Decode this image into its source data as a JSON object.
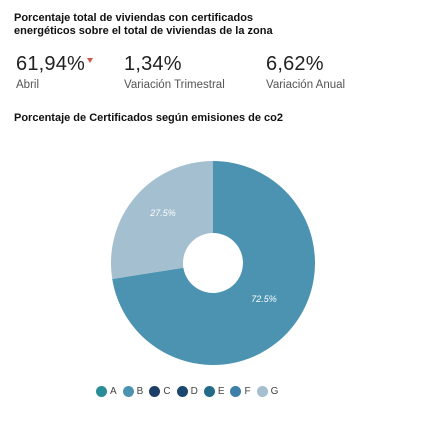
{
  "title": "Porcentaje total de viviendas con certificados energéticos sobre el total de viviendas de la zona",
  "kpis": [
    {
      "value": "61,94%",
      "label": "Abril",
      "trend": "down"
    },
    {
      "value": "1,34%",
      "label": "Variación Trimestral"
    },
    {
      "value": "6,62%",
      "label": "Variación Anual"
    }
  ],
  "colors": {
    "trend_down": "#d9534f"
  },
  "chart_data": {
    "type": "pie",
    "title": "Porcentaje de Certificados según emisiones de co2",
    "categories": [
      "A",
      "B",
      "C",
      "D",
      "E",
      "F",
      "G"
    ],
    "values": [
      0,
      72.5,
      0,
      0,
      0,
      0,
      27.5
    ],
    "slice_labels": [
      "",
      "72.5%",
      "",
      "",
      "",
      "",
      "27.5%"
    ],
    "colors": [
      "#2a8c97",
      "#4b93b1",
      "#1d3d66",
      "#19476e",
      "#226b8a",
      "#3d7fa8",
      "#a3bfd0"
    ],
    "donut": true,
    "legend_position": "bottom"
  }
}
